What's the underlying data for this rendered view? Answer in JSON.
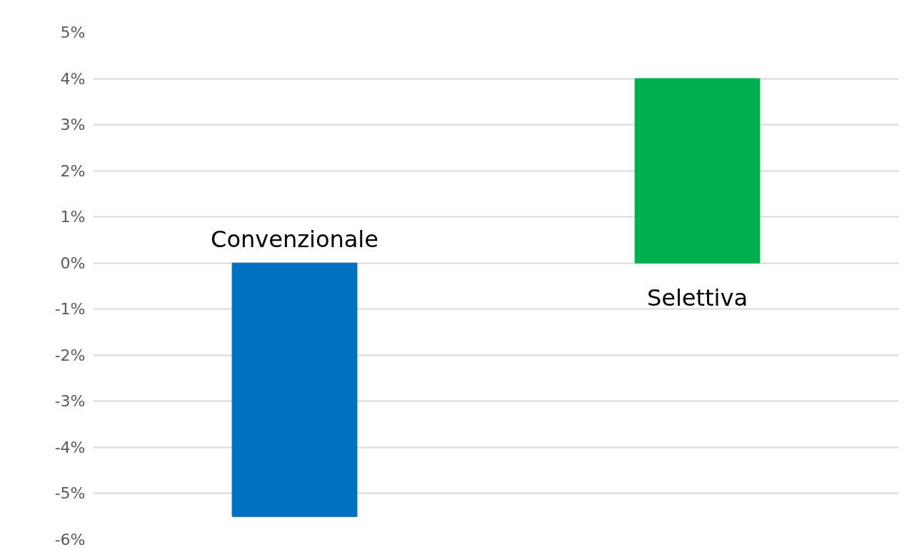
{
  "chart_data": {
    "type": "bar",
    "categories": [
      "Convenzionale",
      "Selettiva"
    ],
    "values": [
      -5.5,
      4
    ],
    "colors": [
      "#0070c0",
      "#00b050"
    ],
    "ylim": [
      -6,
      5
    ],
    "yticks": [
      {
        "value": 5,
        "label": "5%"
      },
      {
        "value": 4,
        "label": "4%"
      },
      {
        "value": 3,
        "label": "3%"
      },
      {
        "value": 2,
        "label": "2%"
      },
      {
        "value": 1,
        "label": "1%"
      },
      {
        "value": 0,
        "label": "0%"
      },
      {
        "value": -1,
        "label": "-1%"
      },
      {
        "value": -2,
        "label": "-2%"
      },
      {
        "value": -3,
        "label": "-3%"
      },
      {
        "value": -4,
        "label": "-4%"
      },
      {
        "value": -5,
        "label": "-5%"
      },
      {
        "value": -6,
        "label": "-6%"
      }
    ],
    "grid": "y",
    "tick_labels": "y"
  }
}
